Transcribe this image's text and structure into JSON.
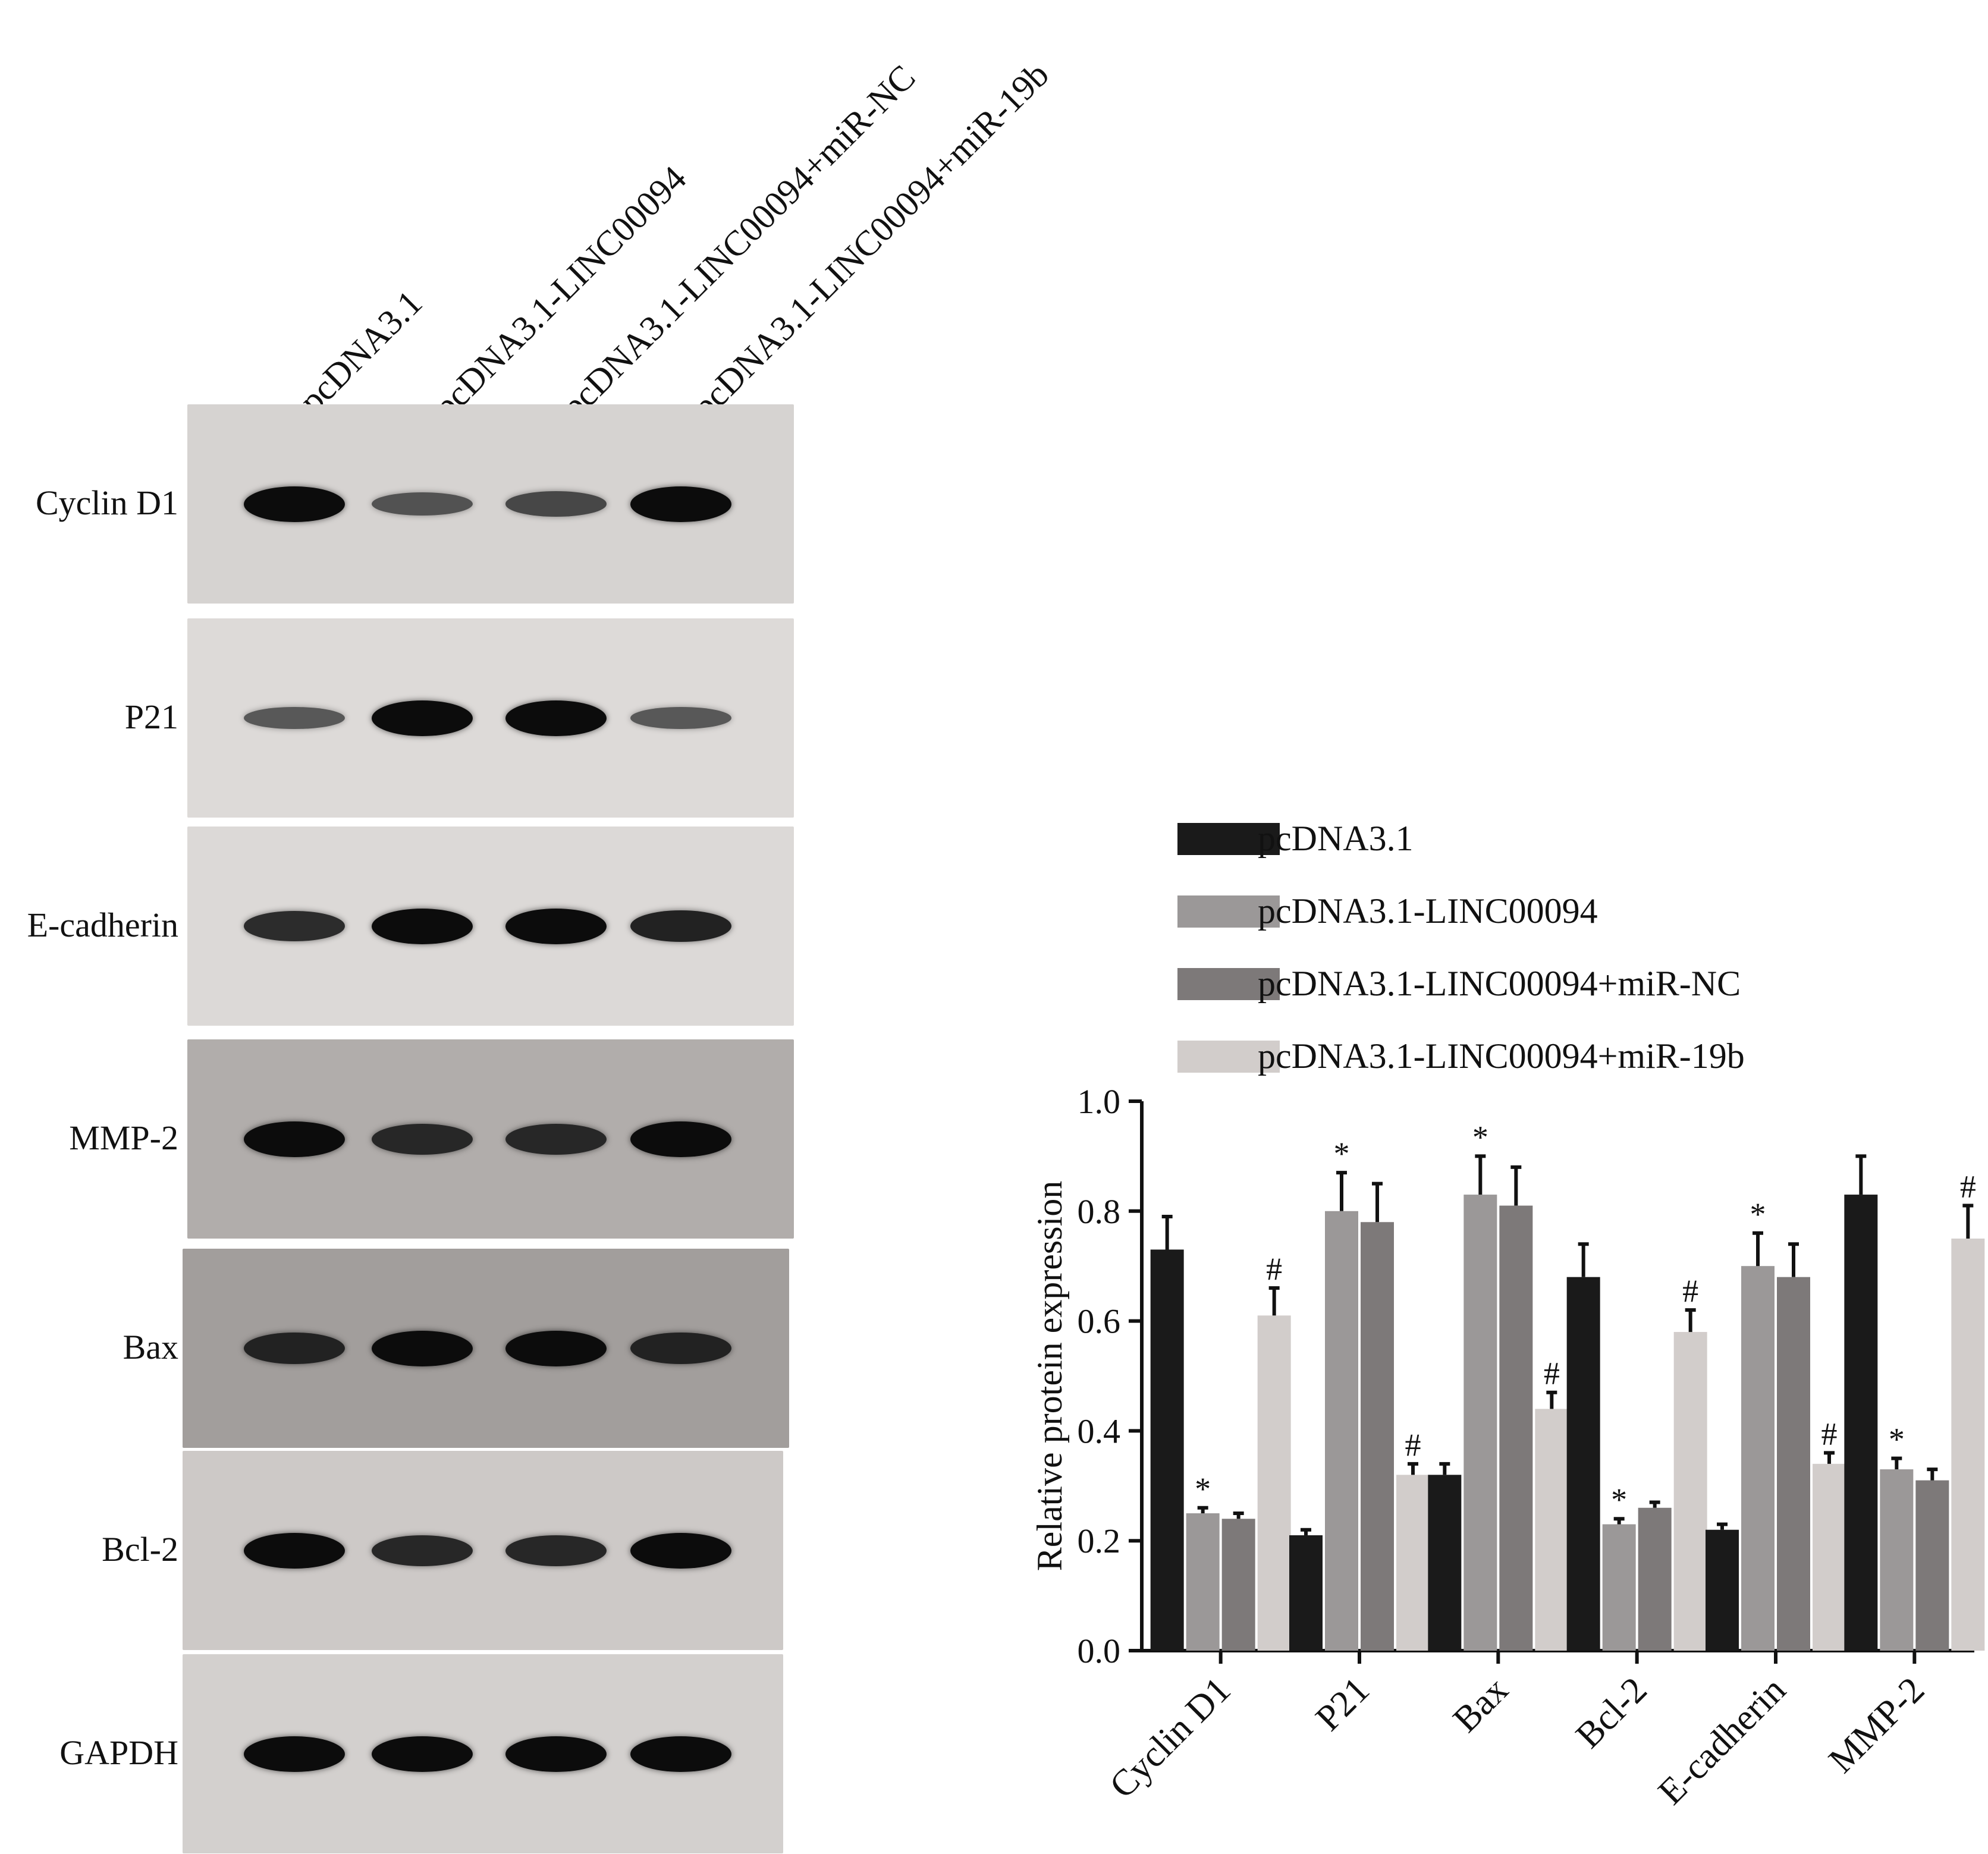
{
  "blot": {
    "lanes": [
      "pcDNA3.1",
      "pcDNA3.1-LINC00094",
      "pcDNA3.1-LINC00094+miR-NC",
      "pcDNA3.1-LINC00094+miR-19b"
    ],
    "rows": [
      {
        "label": "Cyclin D1",
        "bg": "#d6d3d1",
        "bands": [
          1.0,
          0.35,
          0.45,
          1.0
        ]
      },
      {
        "label": "P21",
        "bg": "#dddad8",
        "bands": [
          0.3,
          1.0,
          1.0,
          0.3
        ]
      },
      {
        "label": "E-cadherin",
        "bg": "#dcd9d7",
        "bands": [
          0.7,
          1.0,
          1.0,
          0.8
        ]
      },
      {
        "label": "MMP-2",
        "bg": "#b1adab",
        "bands": [
          1.0,
          0.75,
          0.75,
          1.0
        ]
      },
      {
        "label": "Bax",
        "bg": "#a29e9c",
        "bands": [
          0.8,
          1.0,
          1.0,
          0.8
        ]
      },
      {
        "label": "Bcl-2",
        "bg": "#cdc9c7",
        "bands": [
          1.0,
          0.75,
          0.75,
          1.0
        ]
      },
      {
        "label": "GAPDH",
        "bg": "#d3d0ce",
        "bands": [
          1.0,
          1.0,
          1.0,
          1.0
        ]
      }
    ]
  },
  "chart_data": {
    "type": "bar",
    "categories": [
      "Cyclin D1",
      "P21",
      "Bax",
      "Bcl-2",
      "E-cadherin",
      "MMP-2"
    ],
    "series": [
      {
        "name": "pcDNA3.1",
        "color": "#1a1a1a",
        "values": [
          0.73,
          0.21,
          0.32,
          0.68,
          0.22,
          0.83
        ],
        "errors": [
          0.06,
          0.01,
          0.02,
          0.06,
          0.01,
          0.07
        ],
        "marks": [
          "",
          "",
          "",
          "",
          "",
          ""
        ]
      },
      {
        "name": "pcDNA3.1-LINC00094",
        "color": "#9b9898",
        "values": [
          0.25,
          0.8,
          0.83,
          0.23,
          0.7,
          0.33
        ],
        "errors": [
          0.01,
          0.07,
          0.07,
          0.01,
          0.06,
          0.02
        ],
        "marks": [
          "*",
          "*",
          "*",
          "*",
          "*",
          "*"
        ]
      },
      {
        "name": "pcDNA3.1-LINC00094+miR-NC",
        "color": "#7d7979",
        "values": [
          0.24,
          0.78,
          0.81,
          0.26,
          0.68,
          0.31
        ],
        "errors": [
          0.01,
          0.07,
          0.07,
          0.01,
          0.06,
          0.02
        ],
        "marks": [
          "",
          "",
          "",
          "",
          "",
          ""
        ]
      },
      {
        "name": "pcDNA3.1-LINC00094+miR-19b",
        "color": "#d2cdcb",
        "values": [
          0.61,
          0.32,
          0.44,
          0.58,
          0.34,
          0.75
        ],
        "errors": [
          0.05,
          0.02,
          0.03,
          0.04,
          0.02,
          0.06
        ],
        "marks": [
          "#",
          "#",
          "#",
          "#",
          "#",
          "#"
        ]
      }
    ],
    "ylabel": "Relative protein expression",
    "xlabel": "",
    "ylim": [
      0,
      1.0
    ],
    "yticks": [
      "0.0",
      "0.2",
      "0.4",
      "0.6",
      "0.8",
      "1.0"
    ],
    "legend_position": "top",
    "grid": false
  }
}
